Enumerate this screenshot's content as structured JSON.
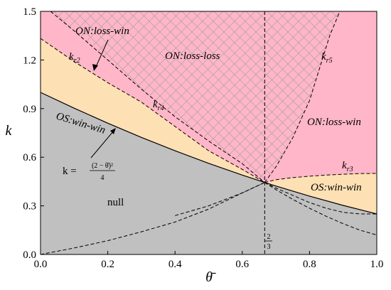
{
  "chart_data": {
    "type": "area",
    "title": "",
    "xlabel": "θ̄",
    "ylabel": "k",
    "xlim": [
      0,
      1
    ],
    "ylim": [
      0,
      1.5
    ],
    "x_ticks": [
      "0.0",
      "0.2",
      "0.4",
      "0.6",
      "0.8",
      "1.0"
    ],
    "y_ticks": [
      "0.0",
      "0.3",
      "0.6",
      "0.9",
      "1.2",
      "1.5"
    ],
    "grid": false,
    "legend": "none",
    "intersection_point": {
      "x": 0.6667,
      "y": 0.4444
    },
    "vertical_line_label": "2/3",
    "curves": [
      {
        "name": "k",
        "subscript": "",
        "style": "solid",
        "label": "k =",
        "formula_numerator": "(2 − θ̄)²",
        "formula_denominator": "4",
        "x": [
          0,
          0.1,
          0.2,
          0.3,
          0.4,
          0.5,
          0.6,
          0.6667,
          0.7,
          0.8,
          0.9,
          1.0
        ],
        "y": [
          1.0,
          0.9025,
          0.81,
          0.7225,
          0.64,
          0.5625,
          0.49,
          0.4444,
          0.4225,
          0.36,
          0.3025,
          0.25
        ]
      },
      {
        "name": "k",
        "subscript": "r2",
        "style": "dashed",
        "x": [
          0,
          0.1,
          0.2,
          0.3,
          0.4,
          0.5,
          0.6,
          0.6667
        ],
        "y": [
          1.333,
          1.19,
          1.06,
          0.94,
          0.79,
          0.64,
          0.525,
          0.4444
        ]
      },
      {
        "name": "k",
        "subscript": "r4",
        "style": "dashed",
        "x": [
          0.03,
          0.1,
          0.2,
          0.3,
          0.4,
          0.5,
          0.6,
          0.6667
        ],
        "y": [
          1.5,
          1.38,
          1.2,
          1.02,
          0.85,
          0.7,
          0.56,
          0.4444
        ]
      },
      {
        "name": "k",
        "subscript": "r3",
        "style": "dashed",
        "x": [
          0.6667,
          0.7,
          0.75,
          0.8,
          0.85,
          0.9,
          0.95,
          1.0
        ],
        "y": [
          0.4444,
          0.461,
          0.474,
          0.483,
          0.49,
          0.495,
          0.499,
          0.5
        ]
      },
      {
        "name": "k",
        "subscript": "r5",
        "style": "dashed",
        "x": [
          0.6667,
          0.7,
          0.75,
          0.8,
          0.83,
          0.86,
          0.89
        ],
        "y": [
          0.4444,
          0.54,
          0.72,
          0.95,
          1.15,
          1.35,
          1.5
        ]
      },
      {
        "name": "",
        "subscript": "",
        "style": "dashed",
        "x": [
          0,
          0.1,
          0.2,
          0.3,
          0.4,
          0.5,
          0.6,
          0.6667
        ],
        "y": [
          0,
          0.04,
          0.085,
          0.14,
          0.2,
          0.28,
          0.38,
          0.4444
        ]
      },
      {
        "name": "",
        "subscript": "",
        "style": "dashed",
        "x": [
          0.4,
          0.5,
          0.6,
          0.6667
        ],
        "y": [
          0.24,
          0.3,
          0.38,
          0.4444
        ]
      },
      {
        "name": "",
        "subscript": "",
        "style": "dashed",
        "x": [
          0.6667,
          0.7,
          0.75,
          0.8,
          0.85,
          0.9,
          0.95,
          1.0
        ],
        "y": [
          0.4444,
          0.41,
          0.365,
          0.32,
          0.285,
          0.26,
          0.25,
          0.25
        ]
      },
      {
        "name": "",
        "subscript": "",
        "style": "dashed",
        "x": [
          0.6667,
          0.7,
          0.75,
          0.8,
          0.85,
          0.9,
          0.95,
          1.0
        ],
        "y": [
          0.4444,
          0.4,
          0.34,
          0.285,
          0.235,
          0.19,
          0.15,
          0.12
        ]
      }
    ],
    "regions": [
      {
        "label": "ON:loss-win",
        "color": "#ffb6c8"
      },
      {
        "label": "ON:loss-loss",
        "color": "#ffb6c8",
        "pattern": "crosshatch"
      },
      {
        "label": "ON:loss-win",
        "color": "#ffb6c8"
      },
      {
        "label": "OS:win-win",
        "color": "#fde0b3"
      },
      {
        "label": "OS:win-win",
        "color": "#fde0b3"
      },
      {
        "label": "null",
        "color": "#c0c0c0"
      }
    ]
  }
}
